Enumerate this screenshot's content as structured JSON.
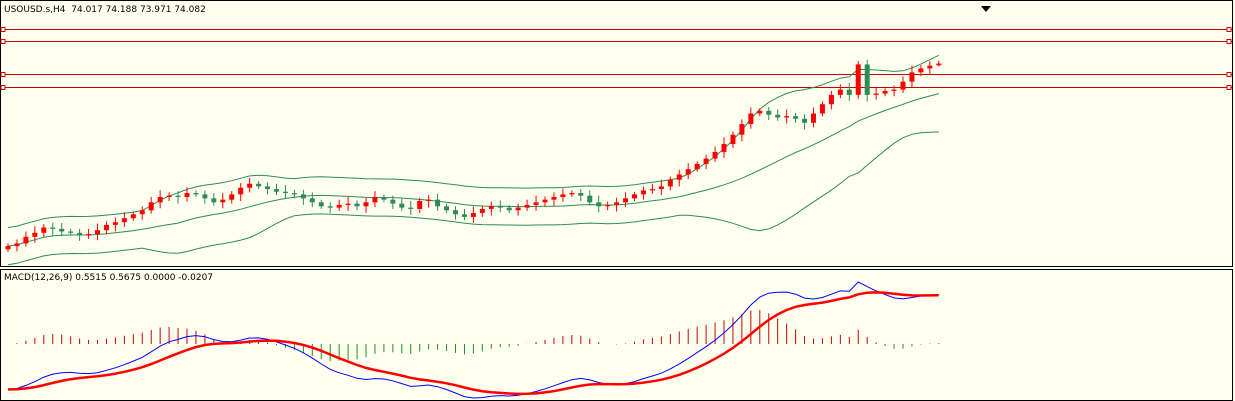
{
  "price_panel": {
    "info_symbol": "USOUSD.s,H4",
    "info_ohlc": "74.017 74.188 73.971 74.082"
  },
  "macd_panel": {
    "info_name": "MACD(12,26,9)",
    "info_values": "0.5515 0.5675 0.0000 -0.0207"
  },
  "chart_data": [
    {
      "type": "candlestick",
      "title": "USOUSD.s,H4",
      "last": {
        "open": 74.017,
        "high": 74.188,
        "low": 73.971,
        "close": 74.082
      },
      "colors": {
        "up": "#ff0000",
        "down": "#2e8b57",
        "bands": "#2e8b57",
        "levels": "#cc0000",
        "background": "#fffff0"
      },
      "close": [
        67.2,
        67.3,
        67.55,
        67.7,
        67.9,
        67.85,
        67.75,
        67.7,
        67.6,
        67.65,
        67.8,
        68.0,
        68.1,
        68.25,
        68.4,
        68.55,
        68.85,
        69.05,
        69.1,
        69.05,
        69.2,
        69.15,
        69.0,
        68.85,
        68.95,
        69.15,
        69.4,
        69.55,
        69.45,
        69.35,
        69.25,
        69.2,
        69.15,
        69.0,
        68.85,
        68.7,
        68.65,
        68.75,
        68.8,
        68.7,
        68.85,
        69.05,
        68.95,
        68.8,
        68.65,
        68.6,
        68.9,
        68.95,
        68.7,
        68.55,
        68.4,
        68.3,
        68.45,
        68.6,
        68.7,
        68.65,
        68.55,
        68.65,
        68.75,
        68.85,
        68.95,
        69.05,
        69.15,
        69.2,
        69.1,
        68.85,
        68.7,
        68.75,
        68.85,
        69.0,
        69.15,
        69.3,
        69.35,
        69.45,
        69.7,
        69.9,
        70.1,
        70.3,
        70.5,
        70.75,
        71.05,
        71.4,
        71.8,
        72.2,
        72.3,
        72.15,
        72.05,
        72.1,
        72.0,
        71.85,
        72.2,
        72.55,
        72.9,
        73.1,
        72.9,
        74.05,
        72.9,
        72.95,
        73.05,
        73.1,
        73.4,
        73.75,
        73.9,
        74.0,
        74.082
      ],
      "bollinger": {
        "period": 20,
        "deviations": 2
      },
      "level_lines": [
        75.4,
        74.95,
        73.7,
        73.2
      ],
      "price_range": [
        66.6,
        75.8
      ]
    },
    {
      "type": "macd",
      "title": "MACD(12,26,9)",
      "values": {
        "macd": 0.5515,
        "signal": 0.5675,
        "value_3": 0.0,
        "value_4": -0.0207
      },
      "colors": {
        "macd": "#0000ff",
        "signal": "#ff0000",
        "hist_pos": "#cc0000",
        "hist_neg": "#228b22"
      }
    }
  ]
}
